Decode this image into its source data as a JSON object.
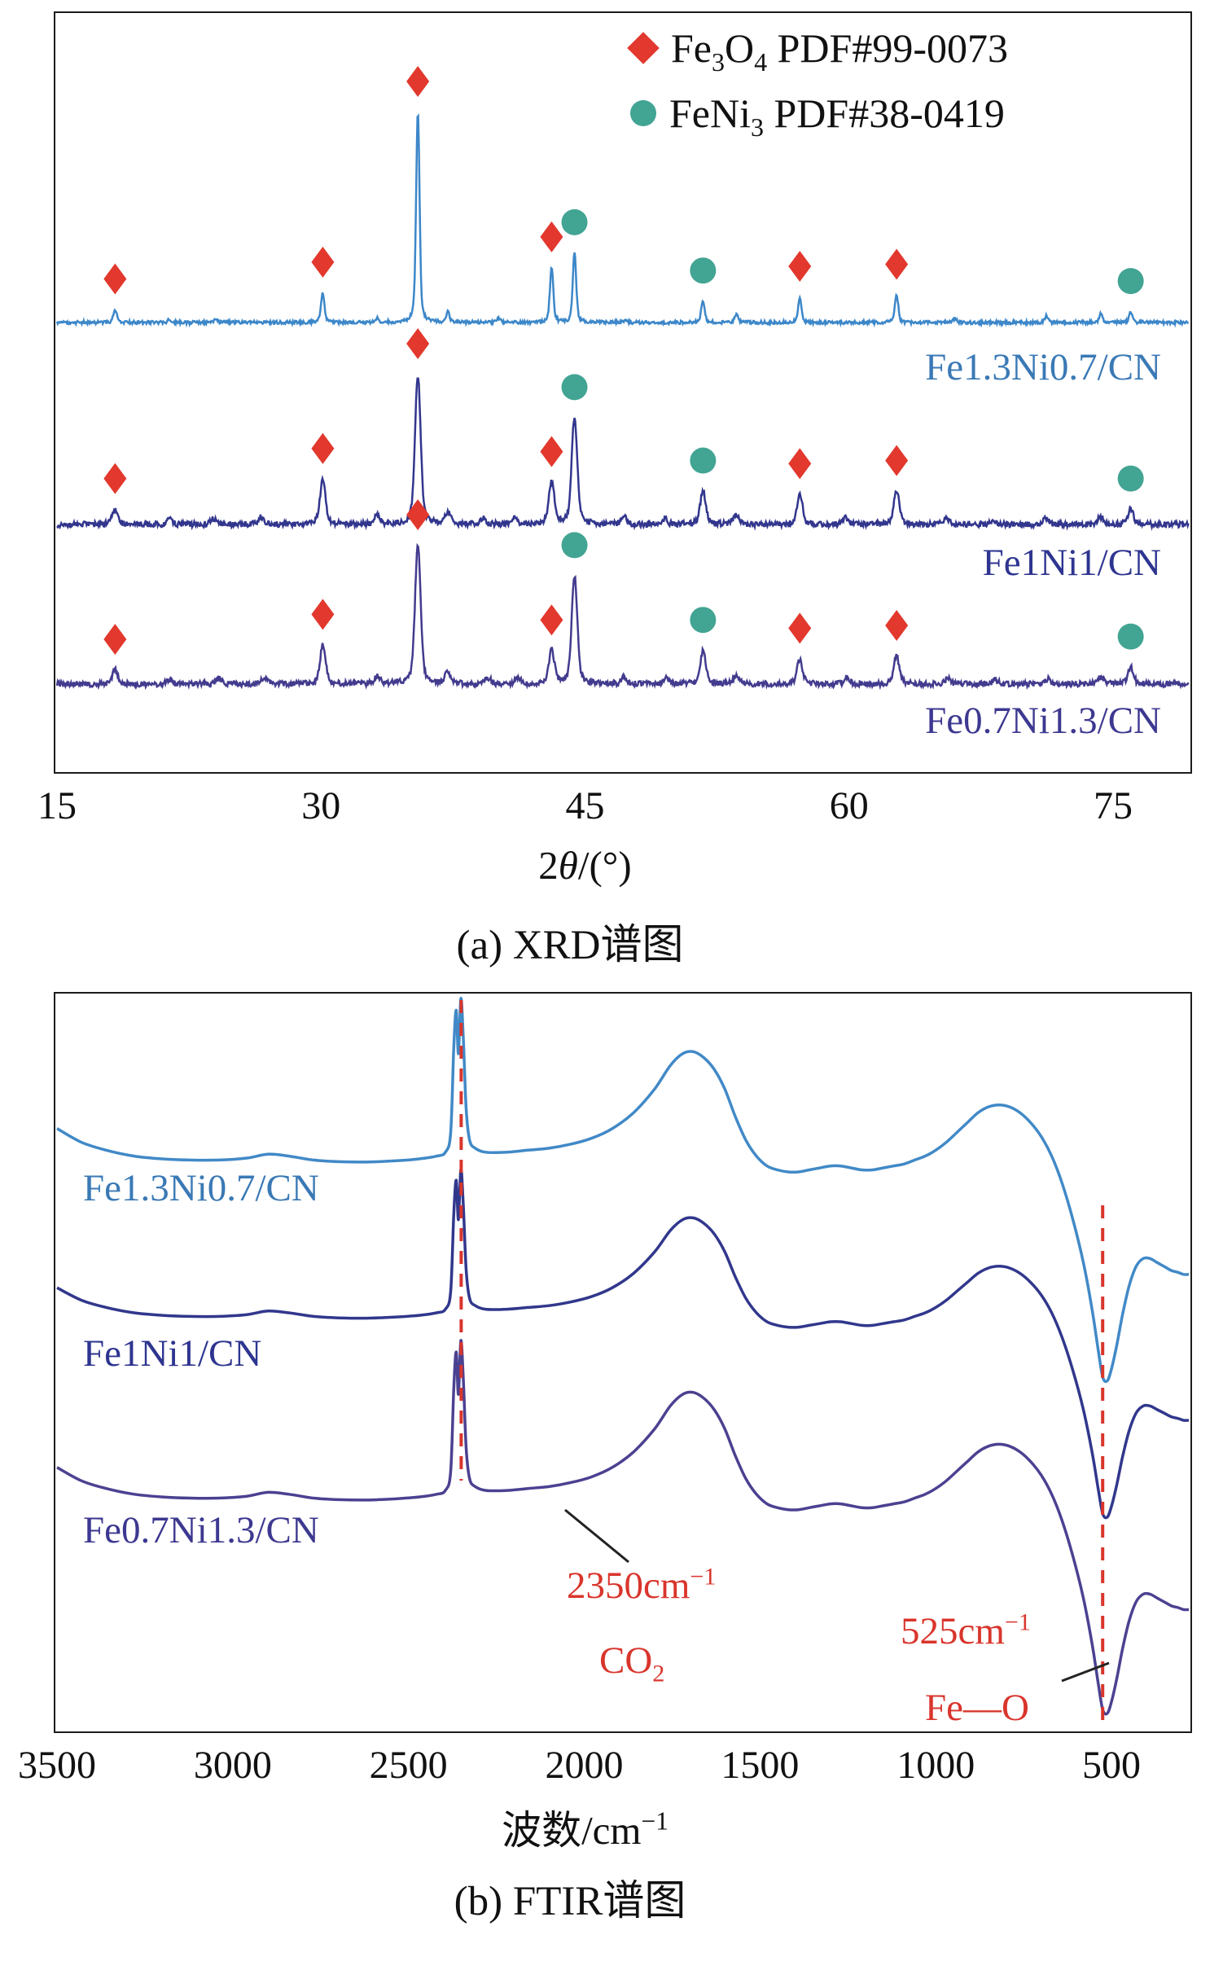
{
  "page": {
    "background": "#ffffff"
  },
  "chart_data": [
    {
      "id": "xrd",
      "type": "line",
      "caption": "(a) XRD谱图",
      "xlabel_rich": [
        [
          "n",
          "2"
        ],
        [
          "i",
          "θ"
        ],
        [
          "n",
          "/(°)"
        ]
      ],
      "ylabel": "",
      "xlim": [
        15,
        79.3
      ],
      "xticks": [
        15,
        30,
        45,
        60,
        75
      ],
      "grid": false,
      "legend_position": "top-right",
      "legend": [
        {
          "marker": "diamond",
          "color": "#e2382d",
          "phase": "Fe3O4",
          "pdf": "PDF#99-0073",
          "label_rich": [
            [
              "n",
              "Fe"
            ],
            [
              "s",
              "3"
            ],
            [
              "n",
              "O"
            ],
            [
              "s",
              "4"
            ],
            [
              "n",
              " PDF#99-0073"
            ]
          ]
        },
        {
          "marker": "circle",
          "color": "#42a493",
          "phase": "FeNi3",
          "pdf": "PDF#38-0419",
          "label_rich": [
            [
              "n",
              "FeNi"
            ],
            [
              "s",
              "3"
            ],
            [
              "n",
              " PDF#38-0419"
            ]
          ]
        }
      ],
      "marker_positions_2theta": {
        "fe3o4": [
          18.3,
          30.1,
          35.5,
          43.1,
          57.2,
          62.7
        ],
        "feni3": [
          44.4,
          51.7,
          76.0
        ]
      },
      "series": [
        {
          "name": "Fe1.3Ni0.7/CN",
          "color": "#3c87c9",
          "label_color": "#3a79b5",
          "peak_width": 0.16,
          "noise": 2.0,
          "peaks": [
            [
              18.3,
              0.06
            ],
            [
              21.4,
              0.015
            ],
            [
              24.0,
              0.015
            ],
            [
              30.1,
              0.14
            ],
            [
              33.2,
              0.02
            ],
            [
              35.5,
              1.0
            ],
            [
              37.2,
              0.05
            ],
            [
              40.1,
              0.02
            ],
            [
              43.1,
              0.26
            ],
            [
              44.4,
              0.33
            ],
            [
              47.3,
              0.015
            ],
            [
              51.7,
              0.1
            ],
            [
              53.6,
              0.04
            ],
            [
              57.2,
              0.12
            ],
            [
              62.7,
              0.13
            ],
            [
              66.0,
              0.02
            ],
            [
              71.2,
              0.03
            ],
            [
              74.3,
              0.04
            ],
            [
              76.0,
              0.05
            ]
          ]
        },
        {
          "name": "Fe1Ni1/CN",
          "color": "#32368d",
          "label_color": "#2e3590",
          "peak_width": 0.26,
          "noise": 3.5,
          "peaks": [
            [
              18.3,
              0.1
            ],
            [
              21.4,
              0.03
            ],
            [
              23.9,
              0.04
            ],
            [
              26.6,
              0.05
            ],
            [
              30.1,
              0.3
            ],
            [
              33.2,
              0.06
            ],
            [
              35.5,
              1.0
            ],
            [
              37.2,
              0.08
            ],
            [
              39.2,
              0.04
            ],
            [
              41.0,
              0.04
            ],
            [
              43.1,
              0.28
            ],
            [
              44.4,
              0.71
            ],
            [
              47.2,
              0.05
            ],
            [
              49.5,
              0.04
            ],
            [
              51.7,
              0.22
            ],
            [
              53.6,
              0.07
            ],
            [
              57.2,
              0.2
            ],
            [
              59.8,
              0.05
            ],
            [
              62.7,
              0.22
            ],
            [
              65.5,
              0.04
            ],
            [
              68.2,
              0.03
            ],
            [
              71.2,
              0.04
            ],
            [
              74.3,
              0.05
            ],
            [
              76.0,
              0.1
            ]
          ]
        },
        {
          "name": "Fe0.7Ni1.3/CN",
          "color": "#433b8e",
          "label_color": "#3d3890",
          "peak_width": 0.26,
          "noise": 3.5,
          "peaks": [
            [
              18.3,
              0.1
            ],
            [
              21.4,
              0.03
            ],
            [
              24.2,
              0.04
            ],
            [
              26.8,
              0.05
            ],
            [
              30.1,
              0.28
            ],
            [
              33.2,
              0.06
            ],
            [
              35.5,
              1.0
            ],
            [
              37.2,
              0.08
            ],
            [
              39.5,
              0.04
            ],
            [
              41.2,
              0.04
            ],
            [
              43.1,
              0.24
            ],
            [
              44.4,
              0.78
            ],
            [
              47.2,
              0.05
            ],
            [
              49.6,
              0.04
            ],
            [
              51.7,
              0.24
            ],
            [
              53.6,
              0.07
            ],
            [
              57.2,
              0.18
            ],
            [
              59.9,
              0.05
            ],
            [
              62.7,
              0.2
            ],
            [
              65.6,
              0.04
            ],
            [
              68.3,
              0.03
            ],
            [
              71.3,
              0.04
            ],
            [
              74.3,
              0.05
            ],
            [
              76.0,
              0.12
            ]
          ]
        }
      ]
    },
    {
      "id": "ftir",
      "type": "line",
      "caption": "(b) FTIR谱图",
      "xlabel_rich": [
        [
          "n",
          "波数/cm"
        ],
        [
          "p",
          "−1"
        ]
      ],
      "ylabel": "",
      "xlim": [
        3500,
        280
      ],
      "xticks": [
        3500,
        3000,
        2500,
        2000,
        1500,
        1000,
        500
      ],
      "grid": false,
      "annotation_color": "#d9352c",
      "annotations": [
        {
          "x_cm": 2350,
          "dashed_line": true,
          "label_rich": [
            [
              "n",
              "2350cm"
            ],
            [
              "p",
              "−1"
            ]
          ],
          "assign_rich": [
            [
              "n",
              "CO"
            ],
            [
              "s",
              "2"
            ]
          ]
        },
        {
          "x_cm": 525,
          "dashed_line": true,
          "label_rich": [
            [
              "n",
              "525cm"
            ],
            [
              "p",
              "−1"
            ]
          ],
          "assign_rich": [
            [
              "n",
              "Fe—O"
            ]
          ]
        }
      ],
      "series": [
        {
          "name": "Fe1.3Ni0.7/CN",
          "color": "#4189c7",
          "label_color": "#3a79b5"
        },
        {
          "name": "Fe1Ni1/CN",
          "color": "#31378c",
          "label_color": "#2e3590"
        },
        {
          "name": "Fe0.7Ni1.3/CN",
          "color": "#4b4191",
          "label_color": "#3d3890"
        }
      ],
      "profile_transmittance": [
        [
          3500,
          67
        ],
        [
          3430,
          63.5
        ],
        [
          3360,
          61.5
        ],
        [
          3280,
          60
        ],
        [
          3200,
          59.3
        ],
        [
          3120,
          59
        ],
        [
          3040,
          59
        ],
        [
          2960,
          59.5
        ],
        [
          2900,
          60.5
        ],
        [
          2840,
          60
        ],
        [
          2770,
          59
        ],
        [
          2700,
          58.6
        ],
        [
          2620,
          58.5
        ],
        [
          2540,
          58.8
        ],
        [
          2470,
          59.3
        ],
        [
          2420,
          60
        ],
        [
          2395,
          61
        ],
        [
          2380,
          66
        ],
        [
          2371,
          88
        ],
        [
          2364,
          97
        ],
        [
          2358,
          86
        ],
        [
          2351,
          100
        ],
        [
          2344,
          90
        ],
        [
          2336,
          72
        ],
        [
          2326,
          64
        ],
        [
          2310,
          62
        ],
        [
          2280,
          61
        ],
        [
          2220,
          61
        ],
        [
          2160,
          61.5
        ],
        [
          2100,
          62
        ],
        [
          2040,
          63
        ],
        [
          1980,
          64.5
        ],
        [
          1920,
          67
        ],
        [
          1860,
          71
        ],
        [
          1800,
          77
        ],
        [
          1755,
          83
        ],
        [
          1720,
          86
        ],
        [
          1690,
          86.5
        ],
        [
          1660,
          85
        ],
        [
          1630,
          82
        ],
        [
          1600,
          77
        ],
        [
          1570,
          70
        ],
        [
          1540,
          64
        ],
        [
          1510,
          60
        ],
        [
          1480,
          57.5
        ],
        [
          1450,
          56.5
        ],
        [
          1420,
          56
        ],
        [
          1390,
          56
        ],
        [
          1360,
          56.5
        ],
        [
          1330,
          57
        ],
        [
          1300,
          57.5
        ],
        [
          1270,
          57.5
        ],
        [
          1240,
          57
        ],
        [
          1210,
          56.5
        ],
        [
          1180,
          56.5
        ],
        [
          1150,
          57
        ],
        [
          1120,
          57.5
        ],
        [
          1090,
          58
        ],
        [
          1060,
          59
        ],
        [
          1030,
          60
        ],
        [
          1000,
          61.5
        ],
        [
          970,
          63.5
        ],
        [
          940,
          66
        ],
        [
          910,
          68.5
        ],
        [
          880,
          71
        ],
        [
          850,
          72.5
        ],
        [
          820,
          73
        ],
        [
          790,
          72.5
        ],
        [
          760,
          71
        ],
        [
          730,
          68.5
        ],
        [
          700,
          65
        ],
        [
          670,
          60
        ],
        [
          640,
          53
        ],
        [
          610,
          44
        ],
        [
          580,
          33
        ],
        [
          555,
          21
        ],
        [
          538,
          11
        ],
        [
          525,
          4
        ],
        [
          512,
          3
        ],
        [
          500,
          6
        ],
        [
          485,
          12
        ],
        [
          468,
          20
        ],
        [
          450,
          27
        ],
        [
          430,
          32
        ],
        [
          410,
          34
        ],
        [
          390,
          34
        ],
        [
          370,
          33
        ],
        [
          350,
          32
        ],
        [
          330,
          31
        ],
        [
          310,
          30.5
        ],
        [
          295,
          30
        ],
        [
          280,
          30
        ]
      ]
    }
  ]
}
